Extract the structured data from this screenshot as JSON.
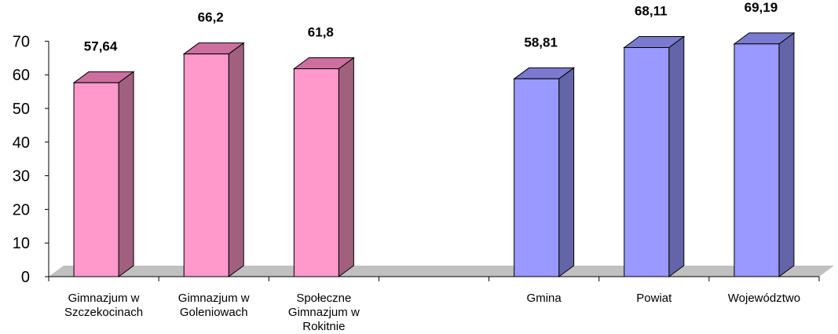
{
  "chart_data": {
    "type": "bar",
    "categories": [
      "Gimnazjum w Szczekocinach",
      "Gimnazjum w Goleniowach",
      "Społeczne Gimnazjum w Rokitnie",
      "",
      "Gmina",
      "Powiat",
      "Województwo"
    ],
    "category_lines": [
      [
        "Gimnazjum w",
        "Szczekocinach"
      ],
      [
        "Gimnazjum w",
        "Goleniowach"
      ],
      [
        "Społeczne",
        "Gimnazjum w",
        "Rokitnie"
      ],
      [],
      [
        "Gmina"
      ],
      [
        "Powiat"
      ],
      [
        "Województwo"
      ]
    ],
    "values": [
      57.64,
      66.2,
      61.8,
      null,
      58.81,
      68.11,
      69.19
    ],
    "value_labels": [
      "57,64",
      "66,2",
      "61,8",
      "",
      "58,81",
      "68,11",
      "69,19"
    ],
    "yticks": [
      "0",
      "10",
      "20",
      "30",
      "40",
      "50",
      "60",
      "70"
    ],
    "ylim": [
      0,
      70
    ],
    "title": "",
    "xlabel": "",
    "ylabel": "",
    "grid": false,
    "legend": "none",
    "colors": {
      "pink_front": "#ff99cc",
      "pink_side": "#a0607e",
      "pink_top": "#cc6f9e",
      "blue_front": "#9999ff",
      "blue_side": "#6464a8",
      "blue_top": "#7a7ad0",
      "floor": "#c0c0c0"
    }
  }
}
